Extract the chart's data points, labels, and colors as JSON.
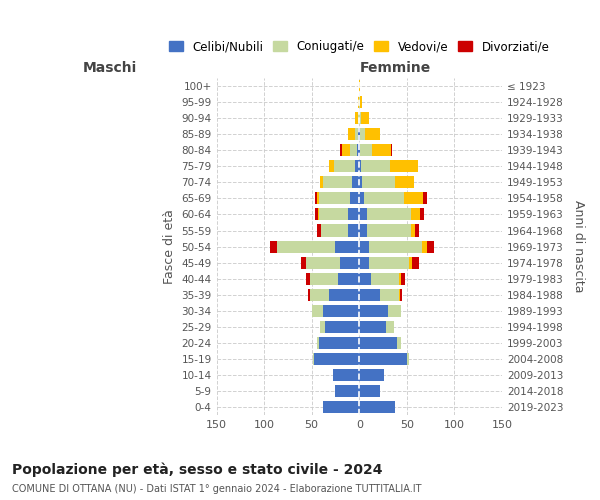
{
  "age_groups": [
    "0-4",
    "5-9",
    "10-14",
    "15-19",
    "20-24",
    "25-29",
    "30-34",
    "35-39",
    "40-44",
    "45-49",
    "50-54",
    "55-59",
    "60-64",
    "65-69",
    "70-74",
    "75-79",
    "80-84",
    "85-89",
    "90-94",
    "95-99",
    "100+"
  ],
  "birth_years": [
    "2019-2023",
    "2014-2018",
    "2009-2013",
    "2004-2008",
    "1999-2003",
    "1994-1998",
    "1989-1993",
    "1984-1988",
    "1979-1983",
    "1974-1978",
    "1969-1973",
    "1964-1968",
    "1959-1963",
    "1954-1958",
    "1949-1953",
    "1944-1948",
    "1939-1943",
    "1934-1938",
    "1929-1933",
    "1924-1928",
    "≤ 1923"
  ],
  "colors": {
    "celibe": "#4472c4",
    "coniugato": "#c6d9a0",
    "vedovo": "#ffc000",
    "divorziato": "#cc0000"
  },
  "maschi": {
    "celibe": [
      38,
      26,
      28,
      48,
      42,
      36,
      38,
      32,
      22,
      20,
      26,
      12,
      12,
      10,
      8,
      5,
      2,
      1,
      0,
      0,
      0
    ],
    "coniugato": [
      0,
      0,
      0,
      1,
      2,
      5,
      12,
      20,
      30,
      36,
      60,
      28,
      30,
      32,
      30,
      22,
      8,
      3,
      1,
      0,
      0
    ],
    "vedovo": [
      0,
      0,
      0,
      0,
      0,
      0,
      0,
      0,
      0,
      0,
      0,
      0,
      1,
      2,
      3,
      5,
      8,
      8,
      4,
      1,
      0
    ],
    "divorziato": [
      0,
      0,
      0,
      0,
      0,
      0,
      0,
      2,
      4,
      5,
      8,
      4,
      4,
      2,
      0,
      0,
      2,
      0,
      0,
      0,
      0
    ]
  },
  "femmine": {
    "nubile": [
      38,
      22,
      26,
      50,
      40,
      28,
      30,
      22,
      12,
      10,
      10,
      8,
      8,
      5,
      3,
      2,
      1,
      1,
      0,
      0,
      0
    ],
    "coniugata": [
      0,
      0,
      0,
      2,
      4,
      8,
      14,
      20,
      30,
      42,
      56,
      46,
      46,
      42,
      35,
      30,
      12,
      5,
      2,
      1,
      0
    ],
    "vedova": [
      0,
      0,
      0,
      0,
      0,
      0,
      0,
      1,
      2,
      3,
      5,
      5,
      10,
      20,
      20,
      30,
      20,
      16,
      8,
      2,
      1
    ],
    "divorziata": [
      0,
      0,
      0,
      0,
      0,
      0,
      0,
      2,
      4,
      8,
      8,
      4,
      4,
      4,
      0,
      0,
      1,
      0,
      0,
      0,
      0
    ]
  },
  "title": "Popolazione per età, sesso e stato civile - 2024",
  "subtitle": "COMUNE DI OTTANA (NU) - Dati ISTAT 1° gennaio 2024 - Elaborazione TUTTITALIA.IT",
  "xlabel_left": "Maschi",
  "xlabel_right": "Femmine",
  "ylabel_left": "Fasce di età",
  "ylabel_right": "Anni di nascita",
  "xlim": 150,
  "legend_labels": [
    "Celibi/Nubili",
    "Coniugati/e",
    "Vedovi/e",
    "Divorziati/e"
  ],
  "bg_color": "#ffffff",
  "grid_color": "#cccccc"
}
